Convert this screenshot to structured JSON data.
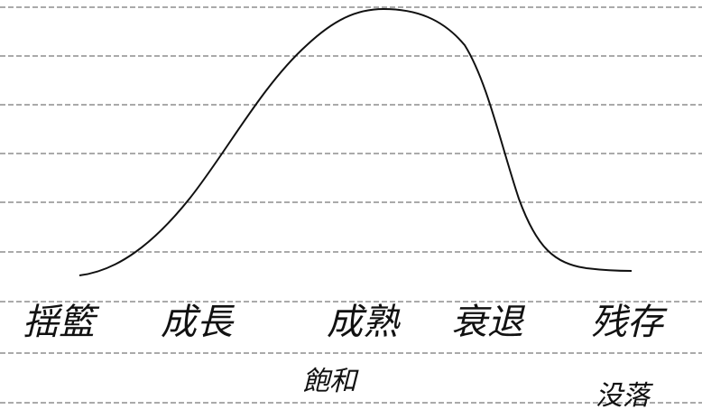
{
  "diagram": {
    "stages": [
      "揺籃",
      "成長",
      "成熟",
      "衰退",
      "残存"
    ],
    "sub_labels": [
      "飽和",
      "没落"
    ]
  }
}
